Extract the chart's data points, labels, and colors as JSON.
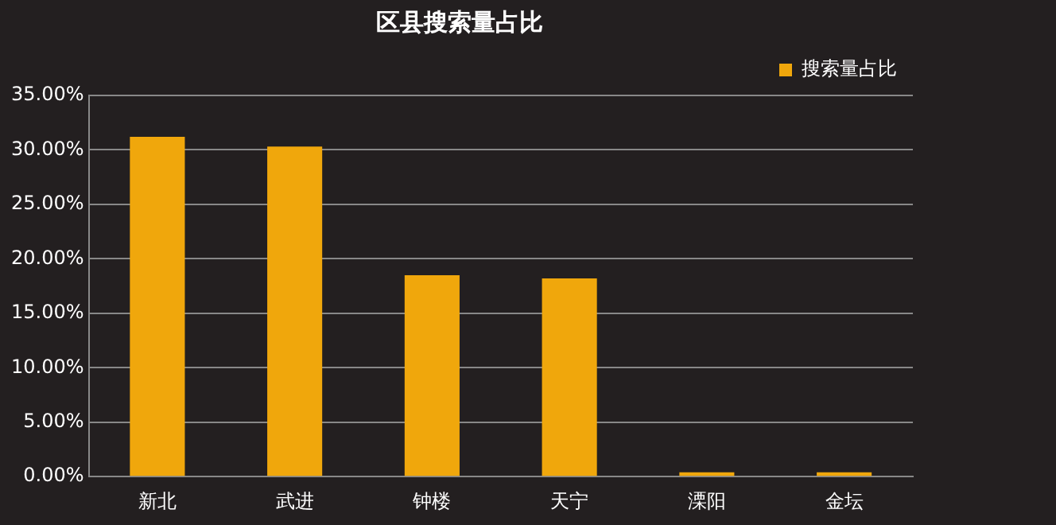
{
  "chart_data": {
    "type": "bar",
    "title": "区县搜索量占比",
    "categories": [
      "新北",
      "武进",
      "钟楼",
      "天宁",
      "溧阳",
      "金坛"
    ],
    "series": [
      {
        "name": "搜索量占比",
        "color": "#f0a70c",
        "values": [
          31.2,
          30.3,
          18.5,
          18.2,
          0.4,
          0.4
        ]
      }
    ],
    "ylim": [
      0,
      35
    ],
    "yticks": [
      {
        "value": 0,
        "label": "0.00%"
      },
      {
        "value": 5,
        "label": "5.00%"
      },
      {
        "value": 10,
        "label": "10.00%"
      },
      {
        "value": 15,
        "label": "15.00%"
      },
      {
        "value": 20,
        "label": "20.00%"
      },
      {
        "value": 25,
        "label": "25.00%"
      },
      {
        "value": 30,
        "label": "30.00%"
      },
      {
        "value": 35,
        "label": "35.00%"
      }
    ],
    "grid": "y",
    "legend": "top right"
  }
}
